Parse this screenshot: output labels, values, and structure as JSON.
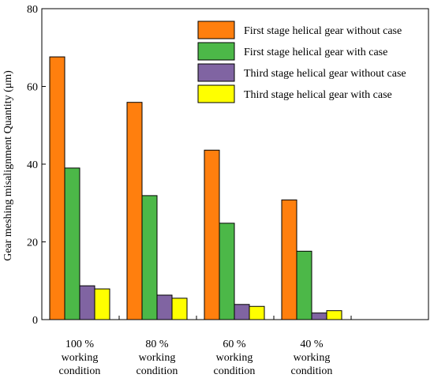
{
  "chart_data": {
    "type": "bar",
    "title": "",
    "xlabel": "",
    "ylabel": "Gear meshing misalignment Quantity (μm)",
    "ylim": [
      0,
      80
    ],
    "yticks": [
      0,
      20,
      40,
      60,
      80
    ],
    "categories": [
      [
        "100 %",
        "working",
        "condition"
      ],
      [
        "80 %",
        "working",
        "condition"
      ],
      [
        "60 %",
        "working",
        "condition"
      ],
      [
        "40 %",
        "working",
        "condition"
      ]
    ],
    "series": [
      {
        "name": "First stage helical gear without case",
        "color": "#FF7F0E",
        "values": [
          67.6,
          55.9,
          43.6,
          30.8
        ]
      },
      {
        "name": "First stage helical gear with case",
        "color": "#4CB848",
        "values": [
          39.0,
          31.9,
          24.8,
          17.6
        ]
      },
      {
        "name": "Third stage helical gear without case",
        "color": "#8064A2",
        "values": [
          8.7,
          6.3,
          3.9,
          1.7
        ]
      },
      {
        "name": "Third stage helical gear with case",
        "color": "#FFFF00",
        "values": [
          7.9,
          5.5,
          3.4,
          2.3
        ]
      }
    ],
    "legend_position": "top-right",
    "grid": false
  }
}
